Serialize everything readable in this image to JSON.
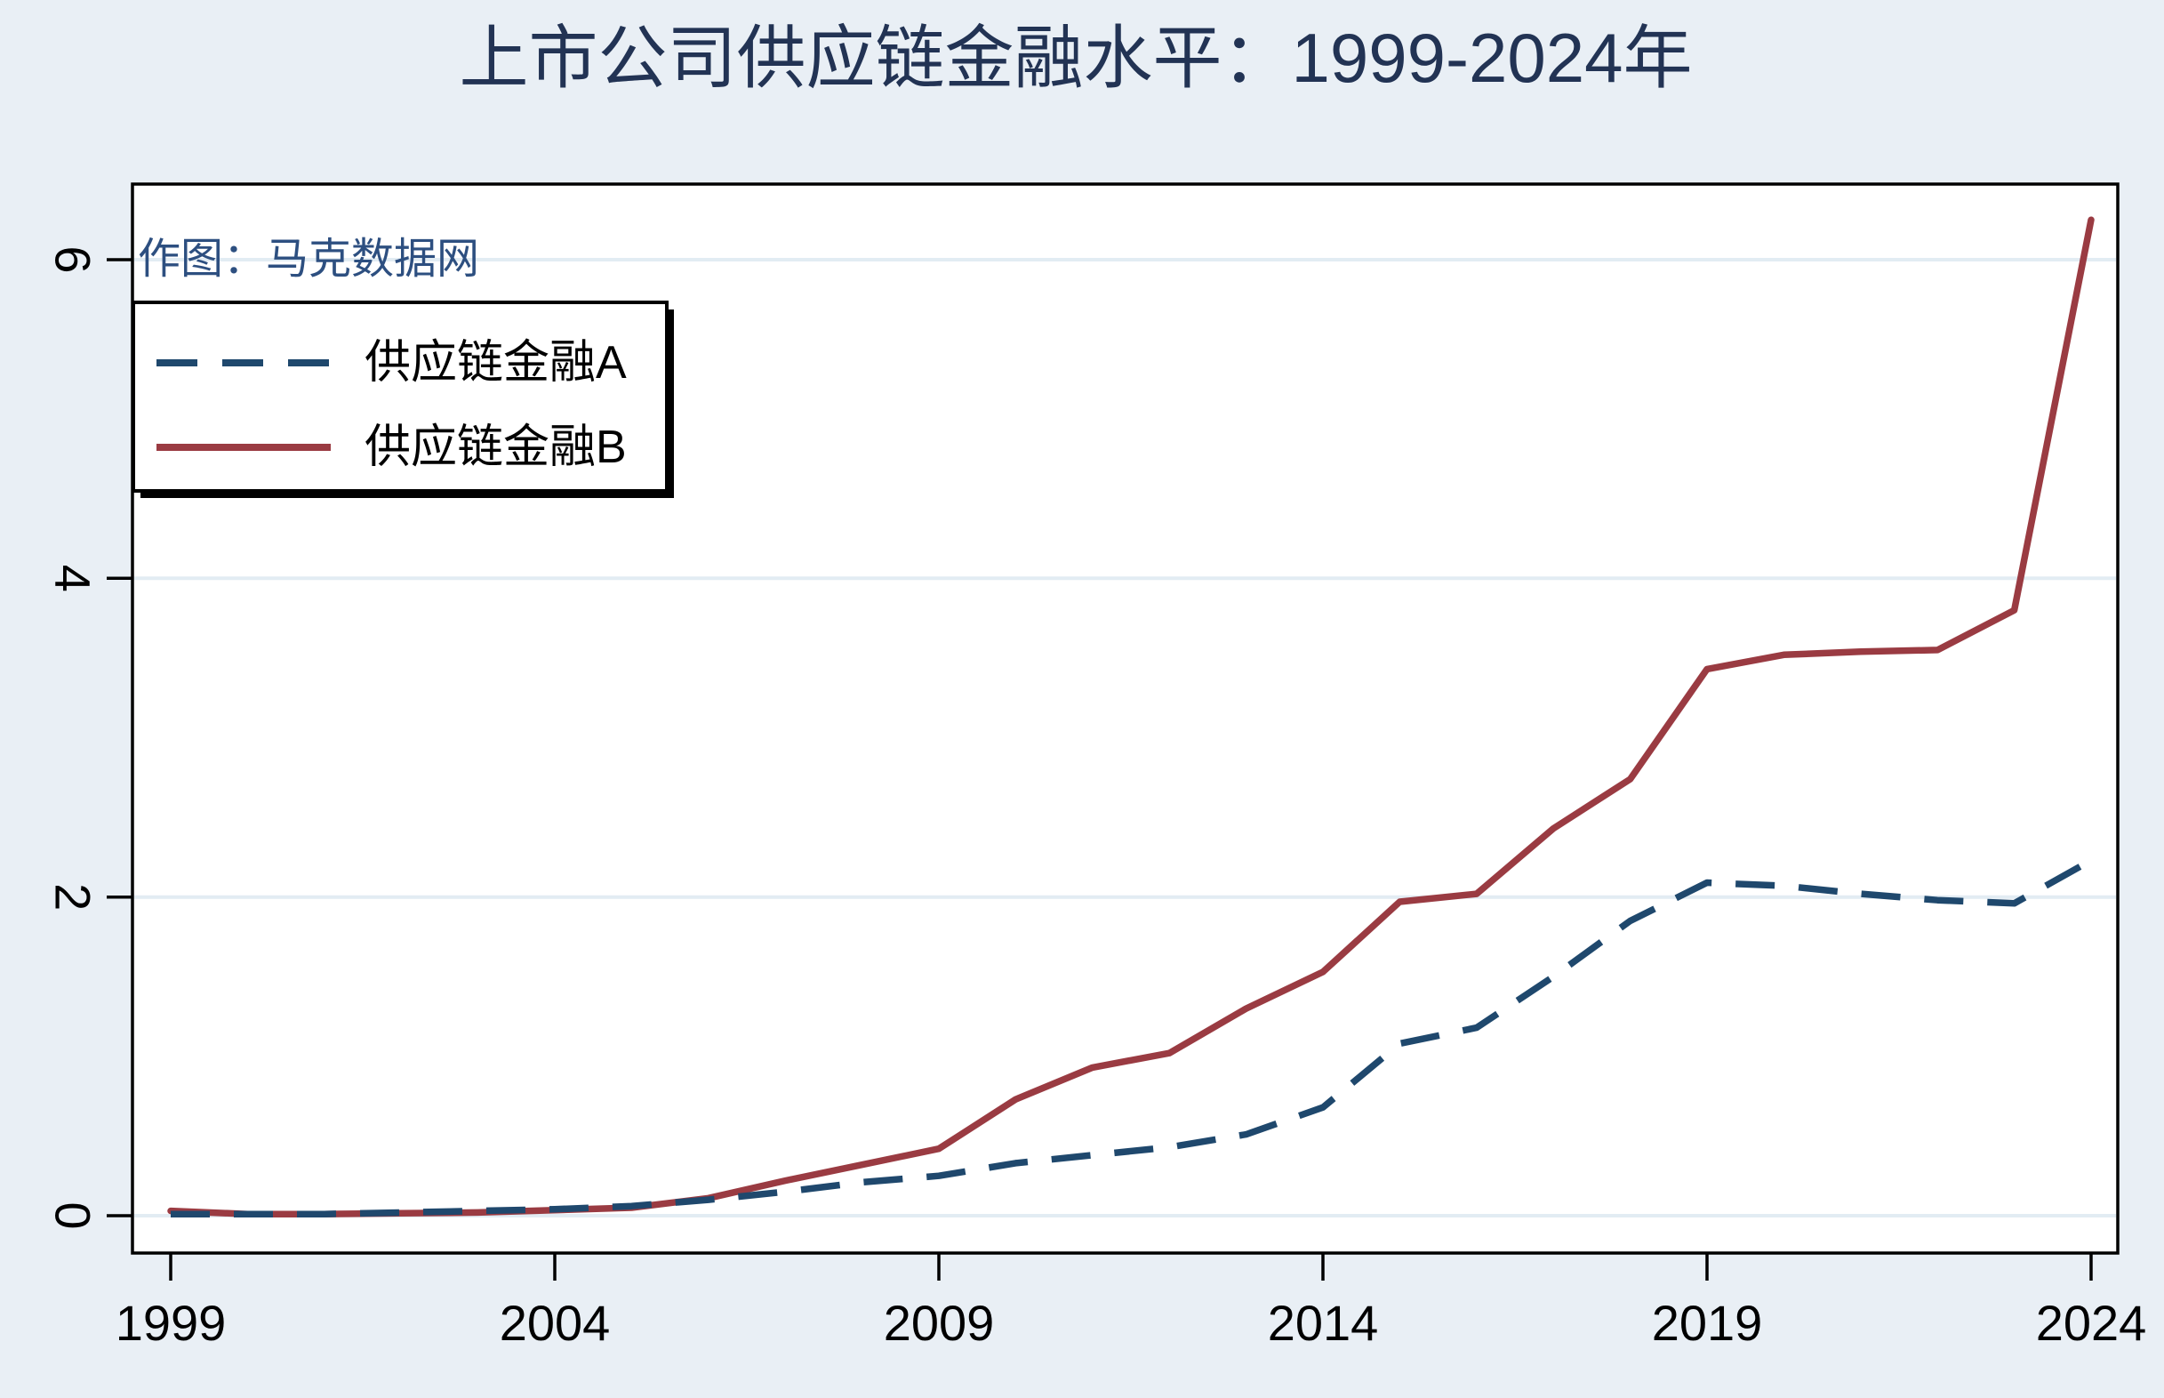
{
  "title": {
    "text": "上市公司供应链金融水平：1999-2024年"
  },
  "watermark": "作图：马克数据网",
  "chart_data": {
    "type": "line",
    "title": "上市公司供应链金融水平：1999-2024年",
    "xlabel": "",
    "ylabel": "",
    "xlim": [
      1999,
      2024
    ],
    "ylim": [
      0,
      6.5
    ],
    "grid": "horizontal",
    "legend_position": "top-left",
    "x_tick_labels": [
      "1999",
      "2004",
      "2009",
      "2014",
      "2019",
      "2024"
    ],
    "y_tick_labels": [
      "0",
      "2",
      "4",
      "6"
    ],
    "x": [
      1999,
      2000,
      2001,
      2002,
      2003,
      2004,
      2005,
      2006,
      2007,
      2008,
      2009,
      2010,
      2011,
      2012,
      2013,
      2014,
      2015,
      2016,
      2017,
      2018,
      2019,
      2020,
      2021,
      2022,
      2023,
      2024
    ],
    "series": [
      {
        "name": "供应链金融A",
        "style": "dashed",
        "color": "#1f486d",
        "values": [
          0.01,
          0.01,
          0.01,
          0.02,
          0.03,
          0.04,
          0.06,
          0.1,
          0.15,
          0.21,
          0.25,
          0.33,
          0.38,
          0.43,
          0.51,
          0.68,
          1.08,
          1.18,
          1.5,
          1.85,
          2.09,
          2.07,
          2.02,
          1.98,
          1.96,
          2.23
        ]
      },
      {
        "name": "供应链金融B",
        "style": "solid",
        "color": "#9a3b42",
        "values": [
          0.03,
          0.01,
          0.01,
          0.015,
          0.02,
          0.035,
          0.05,
          0.11,
          0.22,
          0.32,
          0.42,
          0.73,
          0.93,
          1.02,
          1.3,
          1.53,
          1.97,
          2.02,
          2.43,
          2.74,
          3.43,
          3.52,
          3.54,
          3.55,
          3.8,
          6.25
        ]
      }
    ]
  },
  "colors": {
    "background": "#e9eff5",
    "plot_background": "#ffffff",
    "gridline": "#e2ecf3",
    "axis": "#000000",
    "title": "#223354",
    "watermark": "#2d4f80",
    "series_a": "#1f486d",
    "series_b": "#9a3b42"
  }
}
